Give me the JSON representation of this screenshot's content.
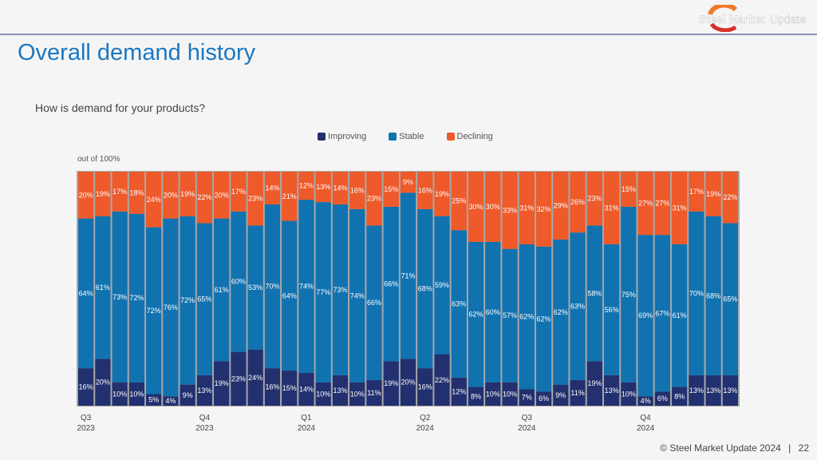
{
  "header": {
    "logo_text": "Steel Market Update",
    "title": "Overall demand history"
  },
  "footer": {
    "copyright": "© Steel Market Update 2024",
    "separator": "|",
    "page": "22"
  },
  "chart_data": {
    "type": "bar",
    "stacked": true,
    "subtitle": "How is demand for your products?",
    "ylabel": "out of 100%",
    "ylim": [
      0,
      100
    ],
    "legend_position": "top",
    "colors": {
      "Improving": "#22306f",
      "Stable": "#1172b0",
      "Declining": "#ee5a2a"
    },
    "quarter_labels": [
      {
        "index": 0,
        "q": "Q3",
        "y": "2023"
      },
      {
        "index": 7,
        "q": "Q4",
        "y": "2023"
      },
      {
        "index": 13,
        "q": "Q1",
        "y": "2024"
      },
      {
        "index": 20,
        "q": "Q2",
        "y": "2024"
      },
      {
        "index": 26,
        "q": "Q3",
        "y": "2024"
      },
      {
        "index": 33,
        "q": "Q4",
        "y": "2024"
      }
    ],
    "series": [
      {
        "name": "Improving",
        "values": [
          16,
          20,
          10,
          10,
          5,
          4,
          9,
          13,
          19,
          23,
          24,
          16,
          15,
          14,
          10,
          13,
          10,
          11,
          19,
          20,
          16,
          22,
          12,
          8,
          10,
          10,
          7,
          6,
          9,
          11,
          19,
          13,
          10,
          4,
          6,
          8,
          13,
          13,
          13
        ]
      },
      {
        "name": "Stable",
        "values": [
          64,
          61,
          73,
          72,
          72,
          76,
          72,
          65,
          61,
          60,
          53,
          70,
          64,
          74,
          77,
          73,
          74,
          66,
          66,
          71,
          68,
          59,
          63,
          62,
          60,
          57,
          62,
          62,
          62,
          63,
          58,
          56,
          75,
          69,
          67,
          61,
          70,
          68,
          65
        ]
      },
      {
        "name": "Declining",
        "values": [
          20,
          19,
          17,
          18,
          24,
          20,
          19,
          22,
          20,
          17,
          23,
          14,
          21,
          12,
          13,
          14,
          16,
          23,
          15,
          9,
          16,
          19,
          25,
          30,
          30,
          33,
          31,
          32,
          29,
          26,
          23,
          31,
          15,
          27,
          27,
          31,
          17,
          19,
          22
        ]
      }
    ]
  }
}
